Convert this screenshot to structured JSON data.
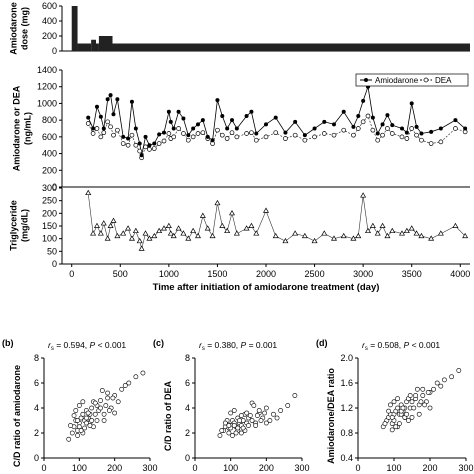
{
  "chart_data": [
    {
      "type": "bar",
      "panel": "top-dose",
      "ylabel": "Amiodarone\ndose (mg)",
      "ylim": [
        0,
        600
      ],
      "yticks": [
        0,
        200,
        400,
        600
      ],
      "xlim": [
        -100,
        4100
      ],
      "steps": [
        {
          "from": 0,
          "to": 60,
          "dose": 600
        },
        {
          "from": 60,
          "to": 200,
          "dose": 100
        },
        {
          "from": 200,
          "to": 250,
          "dose": 150
        },
        {
          "from": 250,
          "to": 280,
          "dose": 100
        },
        {
          "from": 280,
          "to": 420,
          "dose": 200
        },
        {
          "from": 420,
          "to": 4100,
          "dose": 100
        }
      ]
    },
    {
      "type": "line",
      "panel": "middle-concentration",
      "ylabel": "Amiodarone or DEA\n(ng/mL)",
      "ylim": [
        0,
        1400
      ],
      "yticks": [
        0,
        200,
        400,
        600,
        800,
        1000,
        1200,
        1400
      ],
      "xlim": [
        -100,
        4100
      ],
      "legend_position": "top-right",
      "series": [
        {
          "name": "Amiodarone",
          "marker": "filled-circle",
          "x": [
            170,
            220,
            260,
            300,
            330,
            370,
            400,
            430,
            470,
            530,
            580,
            620,
            660,
            700,
            720,
            760,
            800,
            850,
            900,
            950,
            1000,
            1020,
            1050,
            1100,
            1150,
            1200,
            1250,
            1300,
            1350,
            1400,
            1450,
            1500,
            1550,
            1600,
            1650,
            1700,
            1800,
            1850,
            1900,
            2000,
            2100,
            2200,
            2300,
            2400,
            2500,
            2600,
            2700,
            2800,
            2900,
            2950,
            3000,
            3050,
            3100,
            3150,
            3200,
            3250,
            3300,
            3400,
            3450,
            3500,
            3550,
            3600,
            3700,
            3800,
            3950,
            4050
          ],
          "y": [
            830,
            700,
            960,
            840,
            700,
            1050,
            1100,
            870,
            1050,
            600,
            580,
            1020,
            700,
            520,
            380,
            600,
            500,
            520,
            630,
            650,
            900,
            780,
            700,
            900,
            820,
            620,
            700,
            750,
            800,
            600,
            560,
            1040,
            850,
            700,
            800,
            700,
            850,
            900,
            640,
            750,
            830,
            650,
            780,
            620,
            700,
            780,
            750,
            900,
            720,
            850,
            1030,
            1200,
            830,
            640,
            750,
            860,
            740,
            700,
            650,
            1000,
            720,
            640,
            660,
            700,
            800,
            700
          ]
        },
        {
          "name": "DEA",
          "marker": "open-circle",
          "x": [
            170,
            220,
            260,
            300,
            330,
            370,
            400,
            430,
            470,
            530,
            580,
            620,
            660,
            700,
            720,
            760,
            800,
            850,
            900,
            950,
            1000,
            1020,
            1050,
            1100,
            1150,
            1200,
            1250,
            1300,
            1350,
            1400,
            1450,
            1500,
            1550,
            1600,
            1650,
            1700,
            1800,
            1850,
            1900,
            2000,
            2100,
            2200,
            2300,
            2400,
            2500,
            2600,
            2700,
            2800,
            2900,
            2950,
            3000,
            3050,
            3100,
            3150,
            3200,
            3250,
            3300,
            3400,
            3450,
            3500,
            3550,
            3600,
            3700,
            3800,
            3950,
            4050
          ],
          "y": [
            760,
            640,
            700,
            600,
            650,
            780,
            720,
            620,
            680,
            520,
            500,
            620,
            500,
            430,
            350,
            480,
            450,
            460,
            520,
            550,
            640,
            580,
            600,
            700,
            640,
            560,
            600,
            640,
            650,
            580,
            520,
            680,
            620,
            580,
            650,
            600,
            640,
            650,
            560,
            600,
            650,
            580,
            620,
            560,
            600,
            640,
            620,
            680,
            620,
            700,
            780,
            850,
            680,
            560,
            620,
            700,
            640,
            600,
            580,
            700,
            620,
            560,
            520,
            540,
            700,
            660
          ]
        }
      ]
    },
    {
      "type": "line",
      "panel": "bottom-triglyceride",
      "ylabel": "Triglyceride\n(mg/dL)",
      "ylim": [
        0,
        300
      ],
      "yticks": [
        0,
        50,
        100,
        150,
        200,
        250,
        300
      ],
      "xlim": [
        -100,
        4100
      ],
      "xlabel": "Time after initiation of amiodarone treatment (day)",
      "xticks": [
        0,
        500,
        1000,
        1500,
        2000,
        2500,
        3000,
        3500,
        4000
      ],
      "series": [
        {
          "marker": "open-triangle",
          "x": [
            170,
            220,
            260,
            300,
            330,
            370,
            400,
            430,
            470,
            530,
            580,
            620,
            660,
            700,
            720,
            760,
            800,
            850,
            900,
            950,
            1000,
            1020,
            1050,
            1100,
            1150,
            1200,
            1250,
            1300,
            1350,
            1400,
            1450,
            1500,
            1550,
            1600,
            1650,
            1700,
            1800,
            1850,
            1900,
            2000,
            2100,
            2200,
            2300,
            2400,
            2500,
            2600,
            2700,
            2800,
            2900,
            2950,
            3000,
            3050,
            3100,
            3150,
            3200,
            3250,
            3300,
            3400,
            3450,
            3500,
            3550,
            3600,
            3700,
            3800,
            3950,
            4050
          ],
          "y": [
            280,
            120,
            150,
            120,
            160,
            100,
            150,
            170,
            110,
            120,
            140,
            100,
            130,
            90,
            60,
            120,
            100,
            110,
            130,
            140,
            150,
            120,
            110,
            140,
            120,
            100,
            130,
            110,
            190,
            140,
            110,
            240,
            150,
            130,
            200,
            120,
            140,
            150,
            120,
            210,
            110,
            90,
            120,
            110,
            90,
            120,
            100,
            110,
            100,
            110,
            270,
            130,
            150,
            120,
            150,
            110,
            130,
            120,
            130,
            140,
            120,
            110,
            100,
            120,
            150,
            110
          ]
        }
      ]
    },
    {
      "type": "scatter",
      "panel": "b",
      "label": "(b)",
      "ylabel": "C/D ratio of amiodarone",
      "yticks": [
        "0",
        "2",
        "4",
        "6",
        "8"
      ],
      "ylim_display": [
        0,
        8
      ],
      "xlim": [
        0,
        300
      ],
      "xticks": [
        0,
        100,
        200,
        300
      ],
      "annotation_rs": "r",
      "annotation_rs_sub": "s",
      "annotation_value": " = 0.594,",
      "annotation_p": "P",
      "annotation_pval": " < 0.001",
      "x": [
        70,
        80,
        85,
        90,
        95,
        100,
        105,
        110,
        115,
        120,
        125,
        130,
        135,
        140,
        145,
        150,
        155,
        160,
        170,
        180,
        190,
        200,
        210,
        220,
        240,
        260,
        280,
        95,
        100,
        110,
        120,
        130,
        140,
        150,
        90,
        100,
        110,
        120,
        130,
        160,
        170,
        180,
        200,
        230,
        115,
        125,
        135,
        145,
        75,
        85,
        95,
        105,
        165,
        175,
        185,
        195
      ],
      "y": [
        1.5,
        2.0,
        2.5,
        3.0,
        2.2,
        2.8,
        3.2,
        3.5,
        3.0,
        3.8,
        3.2,
        2.8,
        4.0,
        4.5,
        3.5,
        4.2,
        3.8,
        4.0,
        3.5,
        4.8,
        4.0,
        5.0,
        4.5,
        5.5,
        6.0,
        6.5,
        6.8,
        1.8,
        2.5,
        2.0,
        2.8,
        3.5,
        2.5,
        3.0,
        3.8,
        4.2,
        4.5,
        3.2,
        2.6,
        4.6,
        3.0,
        5.2,
        3.6,
        5.8,
        2.4,
        3.6,
        3.0,
        4.4,
        2.6,
        3.4,
        3.0,
        2.2,
        5.4,
        4.2,
        3.8,
        4.8
      ]
    },
    {
      "type": "scatter",
      "panel": "c",
      "label": "(c)",
      "ylabel": "C/D ratio of DEA",
      "yticks": [
        "0",
        "2",
        "4",
        "6",
        "8"
      ],
      "ylim_display": [
        0,
        8
      ],
      "xlim": [
        0,
        300
      ],
      "xticks": [
        0,
        100,
        200,
        300
      ],
      "annotation_rs": "r",
      "annotation_rs_sub": "s",
      "annotation_value": " = 0.380,",
      "annotation_p": "P",
      "annotation_pval": " = 0.001",
      "x": [
        70,
        80,
        85,
        90,
        95,
        100,
        105,
        110,
        115,
        120,
        125,
        130,
        135,
        140,
        145,
        150,
        155,
        160,
        170,
        180,
        190,
        200,
        210,
        220,
        240,
        260,
        280,
        95,
        100,
        110,
        120,
        130,
        140,
        150,
        90,
        100,
        110,
        120,
        130,
        160,
        170,
        180,
        200,
        230,
        115,
        125,
        135,
        145,
        75,
        85,
        95,
        105,
        165,
        175,
        185,
        195
      ],
      "y": [
        1.8,
        2.2,
        2.5,
        2.8,
        2.4,
        2.6,
        3.0,
        2.8,
        2.5,
        3.2,
        2.8,
        2.6,
        3.0,
        3.5,
        2.8,
        3.2,
        3.4,
        3.0,
        2.8,
        3.6,
        3.2,
        4.0,
        3.0,
        3.5,
        3.8,
        4.2,
        5.0,
        2.0,
        2.4,
        2.6,
        2.2,
        3.4,
        2.2,
        2.6,
        3.0,
        3.6,
        3.8,
        2.4,
        2.0,
        4.4,
        2.6,
        3.8,
        2.8,
        3.2,
        2.0,
        3.0,
        2.4,
        3.6,
        2.2,
        2.8,
        2.6,
        1.8,
        4.2,
        3.4,
        3.0,
        3.6
      ]
    },
    {
      "type": "scatter",
      "panel": "d",
      "label": "(d)",
      "ylabel": "Amiodarone/DEA ratio",
      "yticks": [
        "0.4",
        "0.8",
        "1.2",
        "1.6",
        "2.0"
      ],
      "ylim_display": [
        0.4,
        2.0
      ],
      "xlim": [
        0,
        300
      ],
      "xticks": [
        0,
        100,
        200,
        300
      ],
      "annotation_rs": "r",
      "annotation_rs_sub": "s",
      "annotation_value": " = 0.508,",
      "annotation_p": "P",
      "annotation_pval": " < 0.001",
      "x": [
        70,
        80,
        85,
        90,
        95,
        100,
        105,
        110,
        115,
        120,
        125,
        130,
        135,
        140,
        145,
        150,
        155,
        160,
        170,
        180,
        190,
        200,
        210,
        220,
        240,
        260,
        280,
        95,
        100,
        110,
        120,
        130,
        140,
        150,
        90,
        100,
        110,
        120,
        130,
        160,
        170,
        180,
        200,
        230,
        115,
        125,
        135,
        145,
        75,
        85,
        95,
        105,
        165,
        175,
        185,
        195
      ],
      "y": [
        0.9,
        1.0,
        1.05,
        1.1,
        0.95,
        1.1,
        1.15,
        1.2,
        1.1,
        1.25,
        1.15,
        1.05,
        1.3,
        1.35,
        1.2,
        1.3,
        1.2,
        1.35,
        1.25,
        1.4,
        1.3,
        1.45,
        1.5,
        1.6,
        1.65,
        1.7,
        1.8,
        0.85,
        1.0,
        0.9,
        1.1,
        1.2,
        1.0,
        1.05,
        1.25,
        1.3,
        1.35,
        1.15,
        1.05,
        1.4,
        1.1,
        1.5,
        1.2,
        1.55,
        0.95,
        1.2,
        1.1,
        1.4,
        0.95,
        1.15,
        1.05,
        0.9,
        1.5,
        1.3,
        1.25,
        1.45
      ]
    }
  ],
  "legend": {
    "amiodarone_label": "Amiodarone",
    "dea_label": "DEA"
  }
}
